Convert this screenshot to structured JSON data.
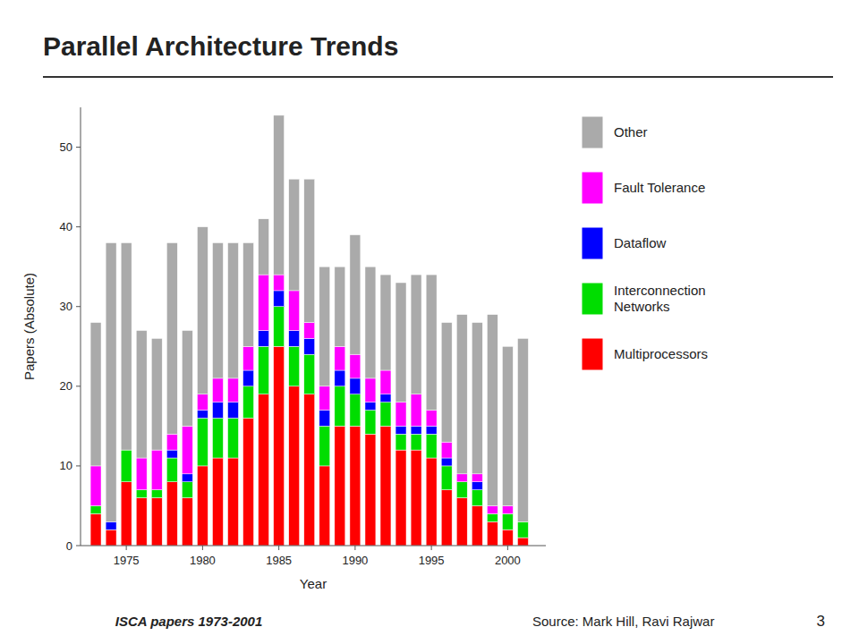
{
  "chart_data": {
    "type": "bar",
    "stacked": true,
    "title": "Parallel Architecture Trends",
    "subtitle": "ISCA papers 1973-2001",
    "annotations": [
      "Source: Mark Hill, Ravi Rajwar",
      "3"
    ],
    "x_label": "Year",
    "y_label": "Papers (Absolute)",
    "x": [
      1973,
      1974,
      1975,
      1976,
      1977,
      1978,
      1979,
      1980,
      1981,
      1982,
      1983,
      1984,
      1985,
      1986,
      1987,
      1988,
      1989,
      1990,
      1991,
      1992,
      1993,
      1994,
      1995,
      1996,
      1997,
      1998,
      1999,
      2000,
      2001
    ],
    "series": [
      {
        "name": "Multiprocessors",
        "color": "#FF0000",
        "values": [
          4,
          2,
          8,
          6,
          6,
          8,
          6,
          10,
          11,
          11,
          16,
          19,
          25,
          20,
          19,
          10,
          15,
          15,
          14,
          15,
          12,
          12,
          11,
          7,
          6,
          5,
          3,
          2,
          1
        ]
      },
      {
        "name": "Interconnection\nNetworks",
        "color": "#00DD00",
        "values": [
          1,
          0,
          4,
          1,
          1,
          3,
          2,
          6,
          5,
          5,
          4,
          6,
          5,
          5,
          5,
          5,
          5,
          4,
          3,
          3,
          2,
          2,
          3,
          3,
          2,
          2,
          1,
          2,
          2
        ]
      },
      {
        "name": "Dataflow",
        "color": "#0000FF",
        "values": [
          0,
          1,
          0,
          0,
          0,
          1,
          1,
          1,
          2,
          2,
          2,
          2,
          2,
          2,
          2,
          2,
          2,
          2,
          1,
          1,
          1,
          1,
          1,
          1,
          0,
          1,
          0,
          0,
          0
        ]
      },
      {
        "name": "Fault Tolerance",
        "color": "#FF00FF",
        "values": [
          5,
          0,
          0,
          4,
          5,
          2,
          6,
          2,
          3,
          3,
          3,
          7,
          2,
          5,
          2,
          3,
          3,
          3,
          3,
          3,
          3,
          4,
          2,
          2,
          1,
          1,
          1,
          1,
          0
        ]
      },
      {
        "name": "Other",
        "color": "#AAAAAA",
        "values": [
          18,
          35,
          26,
          16,
          14,
          24,
          12,
          21,
          17,
          17,
          13,
          7,
          20,
          14,
          18,
          15,
          10,
          15,
          14,
          12,
          15,
          15,
          17,
          15,
          20,
          19,
          24,
          20,
          23
        ]
      }
    ],
    "xlim": [
      1972,
      2002.5
    ],
    "xticks": [
      1975,
      1980,
      1985,
      1990,
      1995,
      2000
    ],
    "ylim": [
      0,
      55
    ],
    "yticks": [
      0,
      10,
      20,
      30,
      40,
      50
    ],
    "grid": false,
    "legend": "right"
  }
}
